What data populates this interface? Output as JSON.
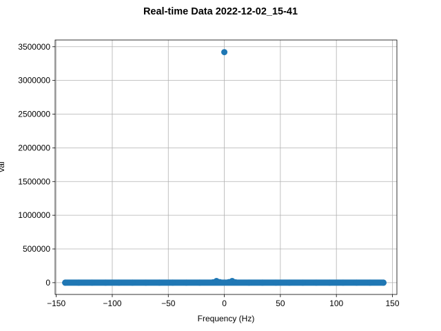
{
  "chart_data": {
    "type": "scatter",
    "title": "Real-time Data 2022-12-02_15-41",
    "xlabel": "Frequency (Hz)",
    "ylabel": "val",
    "xlim": [
      -151,
      154
    ],
    "ylim": [
      -175000,
      3600000
    ],
    "xticks": [
      -150,
      -100,
      -50,
      0,
      50,
      100,
      150
    ],
    "xtick_labels": [
      "−150",
      "−100",
      "−50",
      "0",
      "50",
      "100",
      "150"
    ],
    "yticks": [
      0,
      500000,
      1000000,
      1500000,
      2000000,
      2500000,
      3000000,
      3500000
    ],
    "ytick_labels": [
      "0",
      "500000",
      "1000000",
      "1500000",
      "2000000",
      "2500000",
      "3000000",
      "3500000"
    ],
    "grid": true,
    "legend": "none",
    "color": "#1f77b4",
    "series": [
      {
        "points": [
          [
            -142,
            0
          ],
          [
            -130,
            0
          ],
          [
            -118,
            0
          ],
          [
            -106,
            0
          ],
          [
            -94,
            0
          ],
          [
            -82,
            0
          ],
          [
            -70,
            0
          ],
          [
            -58,
            0
          ],
          [
            -46,
            0
          ],
          [
            -34,
            0
          ],
          [
            -22,
            0
          ],
          [
            -10,
            5000
          ],
          [
            -7,
            25000
          ],
          [
            -4,
            8000
          ],
          [
            0,
            3420000
          ],
          [
            4,
            8000
          ],
          [
            7,
            25000
          ],
          [
            10,
            5000
          ],
          [
            22,
            0
          ],
          [
            34,
            0
          ],
          [
            46,
            0
          ],
          [
            58,
            0
          ],
          [
            70,
            0
          ],
          [
            82,
            0
          ],
          [
            94,
            0
          ],
          [
            106,
            0
          ],
          [
            118,
            0
          ],
          [
            130,
            0
          ],
          [
            142,
            0
          ]
        ],
        "band": {
          "x_from": -142,
          "x_to": 142,
          "y": 0
        }
      }
    ]
  }
}
